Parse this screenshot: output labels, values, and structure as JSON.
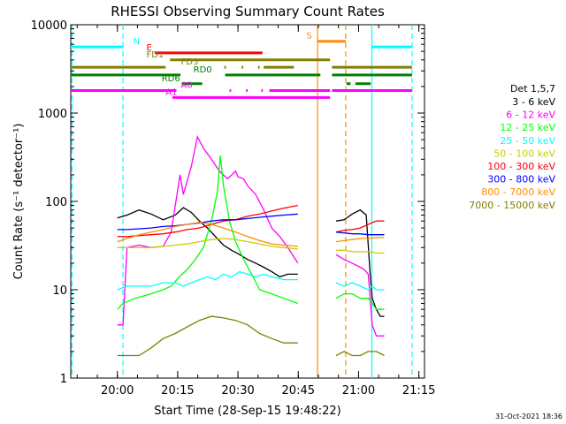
{
  "chart_data": {
    "type": "line",
    "title": "RHESSI Observing Summary Count Rates",
    "xlabel": "Start Time (28-Sep-15 19:48:22)",
    "ylabel": "Count Rate (s⁻¹ detector⁻¹)",
    "x_units": "minutes since 19:48:22",
    "xlim": [
      0,
      88
    ],
    "ylim": [
      1,
      10000
    ],
    "y_scale": "log",
    "x_ticks": [
      {
        "value": 11.6,
        "label": "20:00"
      },
      {
        "value": 26.6,
        "label": "20:15"
      },
      {
        "value": 41.6,
        "label": "20:30"
      },
      {
        "value": 56.6,
        "label": "20:45"
      },
      {
        "value": 71.6,
        "label": "21:00"
      },
      {
        "value": 86.6,
        "label": "21:15"
      }
    ],
    "y_ticks": [
      {
        "value": 1,
        "label": "1"
      },
      {
        "value": 10,
        "label": "10"
      },
      {
        "value": 100,
        "label": "100"
      },
      {
        "value": 1000,
        "label": "1000"
      },
      {
        "value": 10000,
        "label": "10000"
      }
    ],
    "legend": {
      "title": "Det 1,5,7",
      "placement": "right"
    },
    "series": [
      {
        "name": "3 - 6 keV",
        "color": "#000000",
        "points": [
          [
            11.6,
            65
          ],
          [
            14,
            70
          ],
          [
            17,
            80
          ],
          [
            20,
            72
          ],
          [
            23,
            62
          ],
          [
            26,
            70
          ],
          [
            28,
            85
          ],
          [
            30,
            75
          ],
          [
            32,
            60
          ],
          [
            34,
            50
          ],
          [
            36,
            40
          ],
          [
            38,
            32
          ],
          [
            40,
            28
          ],
          [
            42,
            25
          ],
          [
            44,
            22
          ],
          [
            46,
            20
          ],
          [
            48,
            18
          ],
          [
            50,
            16
          ],
          [
            52,
            14
          ],
          [
            54,
            15
          ],
          [
            56.5,
            15
          ],
          [
            66,
            60
          ],
          [
            68,
            62
          ],
          [
            70,
            72
          ],
          [
            72,
            80
          ],
          [
            73.5,
            70
          ],
          [
            74.5,
            15
          ],
          [
            75,
            8
          ],
          [
            76,
            6
          ],
          [
            77,
            5
          ],
          [
            78,
            5
          ]
        ]
      },
      {
        "name": "6 - 12 keV",
        "color": "#ff00ff",
        "points": [
          [
            11.6,
            4
          ],
          [
            13,
            4
          ],
          [
            14,
            30
          ],
          [
            17,
            32
          ],
          [
            20,
            30
          ],
          [
            23,
            31
          ],
          [
            25,
            45
          ],
          [
            26,
            90
          ],
          [
            27.2,
            200
          ],
          [
            28,
            120
          ],
          [
            30,
            250
          ],
          [
            31.5,
            540
          ],
          [
            33,
            400
          ],
          [
            35,
            300
          ],
          [
            37,
            220
          ],
          [
            39,
            180
          ],
          [
            41,
            220
          ],
          [
            41.6,
            190
          ],
          [
            43,
            180
          ],
          [
            44,
            150
          ],
          [
            46,
            120
          ],
          [
            48,
            80
          ],
          [
            50,
            50
          ],
          [
            52,
            40
          ],
          [
            54,
            30
          ],
          [
            56.5,
            20
          ],
          [
            66,
            25
          ],
          [
            68,
            22
          ],
          [
            70,
            20
          ],
          [
            72,
            18
          ],
          [
            73,
            17
          ],
          [
            74,
            15
          ],
          [
            75,
            4
          ],
          [
            76,
            3
          ],
          [
            78,
            3
          ]
        ]
      },
      {
        "name": "12 - 25 keV",
        "color": "#00ff00",
        "points": [
          [
            11.6,
            6
          ],
          [
            13,
            7
          ],
          [
            16,
            8
          ],
          [
            20,
            9
          ],
          [
            23,
            10
          ],
          [
            25,
            11
          ],
          [
            27,
            14
          ],
          [
            29,
            17
          ],
          [
            31,
            22
          ],
          [
            33,
            30
          ],
          [
            35,
            60
          ],
          [
            36.5,
            130
          ],
          [
            37.2,
            330
          ],
          [
            38,
            150
          ],
          [
            39.5,
            60
          ],
          [
            41,
            35
          ],
          [
            43,
            22
          ],
          [
            45,
            15
          ],
          [
            47,
            10
          ],
          [
            50,
            9
          ],
          [
            53,
            8
          ],
          [
            56.5,
            7
          ],
          [
            66,
            8
          ],
          [
            68,
            9
          ],
          [
            70,
            9
          ],
          [
            72,
            8
          ],
          [
            74,
            8
          ],
          [
            75,
            7
          ],
          [
            76,
            6
          ],
          [
            78,
            6
          ]
        ]
      },
      {
        "name": "25 - 50 keV",
        "color": "#00ffff",
        "points": [
          [
            11.6,
            10
          ],
          [
            14,
            11
          ],
          [
            17,
            11
          ],
          [
            20,
            11
          ],
          [
            23,
            12
          ],
          [
            26,
            12
          ],
          [
            28,
            11
          ],
          [
            30,
            12
          ],
          [
            32,
            13
          ],
          [
            34,
            14
          ],
          [
            36,
            13
          ],
          [
            38,
            15
          ],
          [
            40,
            14
          ],
          [
            42,
            16
          ],
          [
            44,
            15
          ],
          [
            46,
            14
          ],
          [
            48,
            15
          ],
          [
            50,
            14
          ],
          [
            53,
            13
          ],
          [
            56.5,
            13
          ],
          [
            66,
            12
          ],
          [
            68,
            11
          ],
          [
            70,
            12
          ],
          [
            72,
            11
          ],
          [
            74,
            10
          ],
          [
            75,
            11
          ],
          [
            76,
            10
          ],
          [
            78,
            10
          ]
        ]
      },
      {
        "name": "50 - 100 keV",
        "color": "#cccc00",
        "points": [
          [
            11.6,
            30
          ],
          [
            14,
            30
          ],
          [
            17,
            30
          ],
          [
            20,
            30
          ],
          [
            23,
            31
          ],
          [
            26,
            32
          ],
          [
            29,
            33
          ],
          [
            32,
            35
          ],
          [
            35,
            37
          ],
          [
            38,
            38
          ],
          [
            41,
            37
          ],
          [
            44,
            35
          ],
          [
            47,
            33
          ],
          [
            50,
            31
          ],
          [
            53,
            30
          ],
          [
            56.5,
            29
          ],
          [
            66,
            28
          ],
          [
            68,
            28
          ],
          [
            70,
            27
          ],
          [
            72,
            27
          ],
          [
            74,
            27
          ],
          [
            76,
            26
          ],
          [
            78,
            26
          ]
        ]
      },
      {
        "name": "100 - 300 keV",
        "color": "#ff0000",
        "points": [
          [
            11.6,
            40
          ],
          [
            14,
            40
          ],
          [
            17,
            41
          ],
          [
            20,
            42
          ],
          [
            23,
            43
          ],
          [
            26,
            45
          ],
          [
            29,
            48
          ],
          [
            32,
            50
          ],
          [
            35,
            55
          ],
          [
            38,
            60
          ],
          [
            41,
            62
          ],
          [
            44,
            68
          ],
          [
            47,
            72
          ],
          [
            50,
            78
          ],
          [
            53,
            84
          ],
          [
            56.5,
            90
          ],
          [
            66,
            45
          ],
          [
            68,
            47
          ],
          [
            70,
            48
          ],
          [
            72,
            50
          ],
          [
            74,
            55
          ],
          [
            76,
            60
          ],
          [
            78,
            60
          ]
        ]
      },
      {
        "name": "300 - 800 keV",
        "color": "#0000ff",
        "points": [
          [
            11.6,
            48
          ],
          [
            14,
            48
          ],
          [
            17,
            49
          ],
          [
            20,
            50
          ],
          [
            23,
            52
          ],
          [
            26,
            53
          ],
          [
            29,
            55
          ],
          [
            32,
            57
          ],
          [
            35,
            60
          ],
          [
            38,
            62
          ],
          [
            41,
            62
          ],
          [
            44,
            64
          ],
          [
            47,
            66
          ],
          [
            50,
            68
          ],
          [
            53,
            70
          ],
          [
            56.5,
            72
          ],
          [
            66,
            45
          ],
          [
            68,
            44
          ],
          [
            70,
            43
          ],
          [
            72,
            43
          ],
          [
            74,
            42
          ],
          [
            76,
            42
          ],
          [
            78,
            42
          ]
        ]
      },
      {
        "name": "800 - 7000 keV",
        "color": "#ff8c00",
        "points": [
          [
            11.6,
            35
          ],
          [
            14,
            38
          ],
          [
            17,
            42
          ],
          [
            20,
            45
          ],
          [
            23,
            48
          ],
          [
            26,
            52
          ],
          [
            29,
            55
          ],
          [
            32,
            58
          ],
          [
            35,
            55
          ],
          [
            38,
            50
          ],
          [
            41,
            45
          ],
          [
            44,
            40
          ],
          [
            47,
            36
          ],
          [
            50,
            33
          ],
          [
            53,
            32
          ],
          [
            56.5,
            31
          ],
          [
            66,
            35
          ],
          [
            68,
            36
          ],
          [
            70,
            37
          ],
          [
            72,
            38
          ],
          [
            74,
            38
          ],
          [
            76,
            39
          ],
          [
            78,
            39
          ]
        ]
      },
      {
        "name": "7000 - 15000 keV",
        "color": "#808000",
        "points": [
          [
            11.6,
            1.8
          ],
          [
            14,
            1.8
          ],
          [
            17,
            1.8
          ],
          [
            20,
            2.2
          ],
          [
            23,
            2.8
          ],
          [
            26,
            3.2
          ],
          [
            29,
            3.8
          ],
          [
            32,
            4.5
          ],
          [
            35,
            5
          ],
          [
            38,
            4.8
          ],
          [
            41,
            4.5
          ],
          [
            44,
            4
          ],
          [
            47,
            3.2
          ],
          [
            50,
            2.8
          ],
          [
            53,
            2.5
          ],
          [
            56.5,
            2.5
          ],
          [
            66,
            1.8
          ],
          [
            68,
            2
          ],
          [
            70,
            1.8
          ],
          [
            72,
            1.8
          ],
          [
            74,
            2
          ],
          [
            76,
            2
          ],
          [
            78,
            1.8
          ]
        ]
      }
    ],
    "vertical_lines": [
      {
        "x": 0.3,
        "color": "#00ffff",
        "dash": true
      },
      {
        "x": 13.0,
        "color": "#00ffff",
        "dash": true
      },
      {
        "x": 61.4,
        "color": "#ff8c00",
        "dash": false
      },
      {
        "x": 68.4,
        "color": "#ff8c00",
        "dash": true
      },
      {
        "x": 74.9,
        "color": "#00ffff",
        "dash": false
      },
      {
        "x": 84.9,
        "color": "#00ffff",
        "dash": true
      }
    ],
    "flags": [
      {
        "label": "S",
        "color": "#ff8c00",
        "y": 6500,
        "label_x": 58.6,
        "segments": [
          [
            61.4,
            68.4
          ]
        ]
      },
      {
        "label": "N",
        "color": "#00ffff",
        "y": 5600,
        "label_x": 15.5,
        "segments": [
          [
            0,
            13.0
          ],
          [
            74.9,
            84.9
          ]
        ]
      },
      {
        "label": "E",
        "color": "#ff0000",
        "y": 4800,
        "label_x": 18.8,
        "segments": [
          [
            20.9,
            47.7
          ]
        ]
      },
      {
        "label": "FD1",
        "color": "#808000",
        "y": 4000,
        "label_x": 18.8,
        "segments": [
          [
            24.7,
            64.5
          ]
        ]
      },
      {
        "label": "FD3",
        "color": "#808000",
        "y": 3300,
        "label_x": 27.4,
        "segments": [
          [
            0,
            23.6
          ],
          [
            38.2,
            38.6
          ],
          [
            42.5,
            42.9
          ],
          [
            46.6,
            47
          ],
          [
            48,
            55.5
          ],
          [
            65,
            84.9
          ]
        ]
      },
      {
        "label": "RD0",
        "color": "#008000",
        "y": 2700,
        "label_x": 30.5,
        "segments": [
          [
            0,
            27.3
          ],
          [
            38.4,
            62.1
          ],
          [
            65,
            84.9
          ]
        ]
      },
      {
        "label": "RD6",
        "color": "#008000",
        "y": 2150,
        "label_x": 22.6,
        "segments": [
          [
            27.6,
            32.7
          ],
          [
            68.6,
            69.6
          ],
          [
            70.8,
            74.6
          ]
        ]
      },
      {
        "label": "A0",
        "color": "#ff00ff",
        "y": 1800,
        "label_x": 27.4,
        "segments": [
          [
            0,
            26.3
          ],
          [
            39.5,
            39.9
          ],
          [
            43.6,
            44
          ],
          [
            47.4,
            47.8
          ],
          [
            49.4,
            64.5
          ],
          [
            65,
            84.9
          ]
        ]
      },
      {
        "label": "A1",
        "color": "#ff00ff",
        "y": 1500,
        "label_x": 23.6,
        "segments": [
          [
            25.3,
            64.5
          ]
        ]
      }
    ]
  },
  "footer": {
    "date": "31-Oct-2021 18:36"
  }
}
